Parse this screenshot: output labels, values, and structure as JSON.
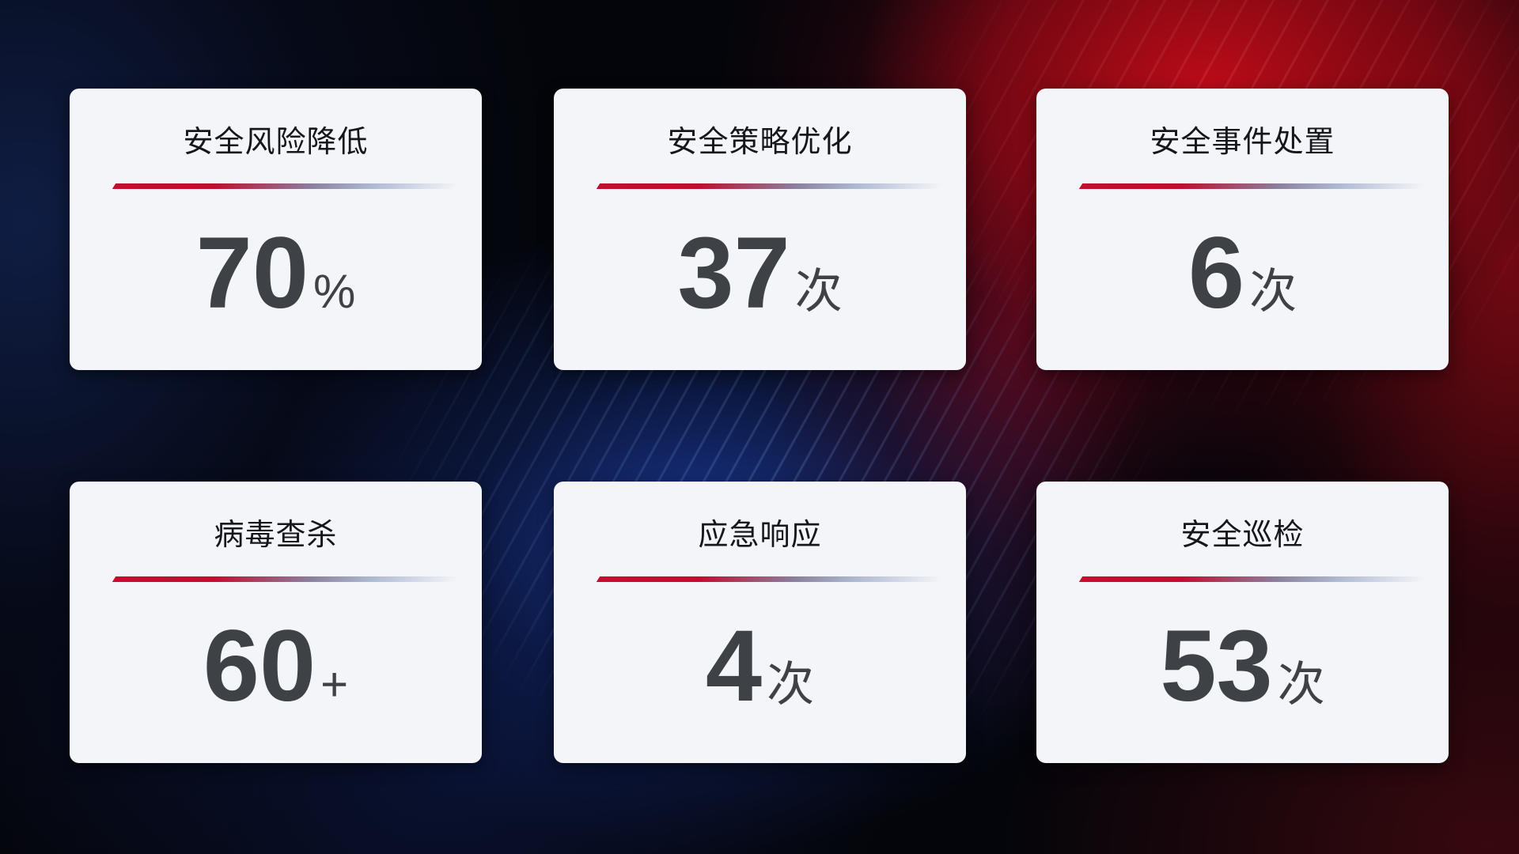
{
  "colors": {
    "card_background": "#f4f5f8",
    "title_text": "#15171b",
    "value_text": "#3e4146",
    "divider_red": "#c30e2f",
    "divider_steel_blue": "#aeb9d2",
    "background_navy": "#112049",
    "background_red": "#b30d16",
    "background_blue": "#1e3ea5"
  },
  "cards": [
    {
      "title": "安全风险降低",
      "value": "70",
      "unit": "%"
    },
    {
      "title": "安全策略优化",
      "value": "37",
      "unit": "次"
    },
    {
      "title": "安全事件处置",
      "value": "6",
      "unit": "次"
    },
    {
      "title": "病毒查杀",
      "value": "60",
      "unit": "+"
    },
    {
      "title": "应急响应",
      "value": "4",
      "unit": "次"
    },
    {
      "title": "安全巡检",
      "value": "53",
      "unit": "次"
    }
  ]
}
